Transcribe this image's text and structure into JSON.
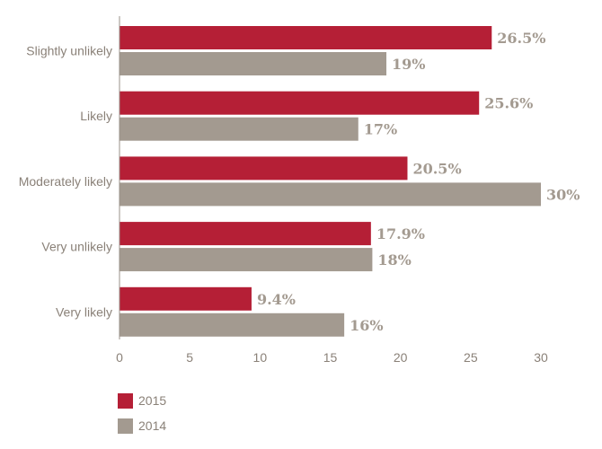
{
  "chart_data": {
    "type": "bar",
    "orientation": "horizontal",
    "categories": [
      "Slightly unlikely",
      "Likely",
      "Moderately likely",
      "Very unlikely",
      "Very likely"
    ],
    "series": [
      {
        "name": "2015",
        "color": "#b51f36",
        "values": [
          26.5,
          25.6,
          20.5,
          17.9,
          9.4
        ],
        "labels": [
          "26.5%",
          "25.6%",
          "20.5%",
          "17.9%",
          "9.4%"
        ]
      },
      {
        "name": "2014",
        "color": "#a39a90",
        "values": [
          19,
          17,
          30,
          18,
          16
        ],
        "labels": [
          "19%",
          "17%",
          "30%",
          "18%",
          "16%"
        ]
      }
    ],
    "xlim": [
      0,
      30
    ],
    "xticks": [
      0,
      5,
      10,
      15,
      20,
      25,
      30
    ],
    "grid": false,
    "legend_position": "bottom-left"
  }
}
